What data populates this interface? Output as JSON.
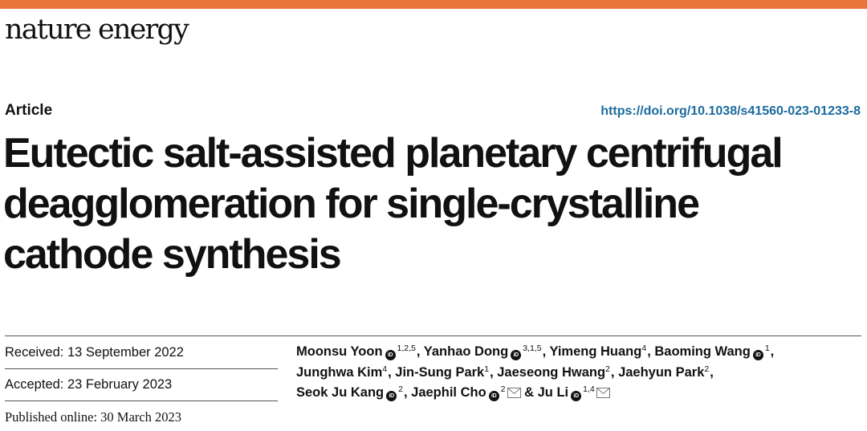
{
  "header": {
    "journal_name": "nature energy",
    "accent_color": "#e8743b"
  },
  "article": {
    "type": "Article",
    "doi": "https://doi.org/10.1038/s41560-023-01233-8",
    "title_lines": [
      "Eutectic salt-assisted planetary centrifugal",
      "deagglomeration for single-crystalline",
      "cathode synthesis"
    ]
  },
  "dates": {
    "received_label": "Received: ",
    "received": "13 September 2022",
    "accepted_label": "Accepted: ",
    "accepted": "23 February 2023",
    "published": "Published online: 30 March 2023"
  },
  "authors": [
    {
      "name": "Moonsu Yoon",
      "orcid": true,
      "affil": "1,2,5",
      "email": false
    },
    {
      "name": "Yanhao Dong",
      "orcid": true,
      "affil": "3,1,5",
      "email": false
    },
    {
      "name": "Yimeng Huang",
      "orcid": false,
      "affil": "4",
      "email": false
    },
    {
      "name": "Baoming Wang",
      "orcid": true,
      "affil": "1",
      "email": false
    },
    {
      "name": "Junghwa Kim",
      "orcid": false,
      "affil": "4",
      "email": false
    },
    {
      "name": "Jin-Sung Park",
      "orcid": false,
      "affil": "1",
      "email": false
    },
    {
      "name": "Jaeseong Hwang",
      "orcid": false,
      "affil": "2",
      "email": false
    },
    {
      "name": "Jaehyun Park",
      "orcid": false,
      "affil": "2",
      "email": false
    },
    {
      "name": "Seok Ju Kang",
      "orcid": true,
      "affil": "2",
      "email": false
    },
    {
      "name": "Jaephil Cho",
      "orcid": true,
      "affil": "2",
      "email": true
    },
    {
      "name": "Ju Li",
      "orcid": true,
      "affil": "1,4",
      "email": true
    }
  ],
  "orcid_icon_text": "iD",
  "and_text": "&"
}
